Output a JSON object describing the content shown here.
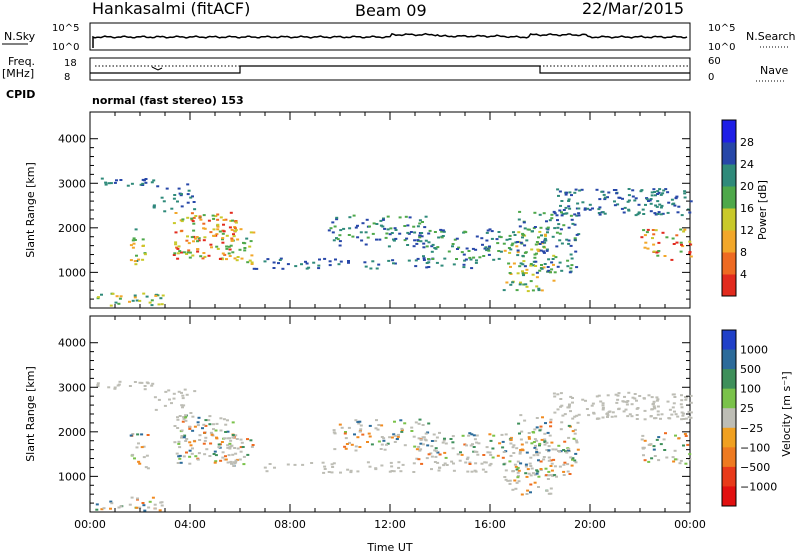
{
  "header": {
    "station": "Hankasalmi (fitACF)",
    "beam": "Beam 09",
    "date": "22/Mar/2015"
  },
  "panels": {
    "nsky_label": "N.Sky",
    "nsky_top_tick": "10^5",
    "nsky_bottom_tick": "10^0",
    "nsearch_label": "N.Search",
    "freq_label_1": "Freq.",
    "freq_label_2": "[MHz]",
    "freq_top_tick": "18",
    "freq_bottom_tick": "8",
    "nave_label": "Nave",
    "nave_top_tick": "60",
    "nave_bottom_tick": "0",
    "cpid_label": "CPID",
    "cpid_text": "normal (fast stereo) 153"
  },
  "chart_data": [
    {
      "type": "heatmap",
      "ylabel": "Slant Range [km]",
      "xlabel": "",
      "x_ticks": [
        "00:00",
        "04:00",
        "08:00",
        "12:00",
        "16:00",
        "20:00",
        "00:00"
      ],
      "y_ticks": [
        1000,
        2000,
        3000,
        4000
      ],
      "ylim": [
        200,
        4600
      ],
      "xlim_hours": [
        0,
        24
      ],
      "colorbar_label": "Power [dB]",
      "colorbar_ticks": [
        "4",
        "8",
        "12",
        "16",
        "20",
        "24",
        "28"
      ],
      "colorbar_colors": [
        "#1f1fe6",
        "#2747a8",
        "#2f8a7a",
        "#4ea84a",
        "#c9c92a",
        "#f2a72a",
        "#ee6a22",
        "#e22b1e"
      ]
    },
    {
      "type": "heatmap",
      "ylabel": "Slant Range [km]",
      "xlabel": "Time UT",
      "x_ticks": [
        "00:00",
        "04:00",
        "08:00",
        "12:00",
        "16:00",
        "20:00",
        "00:00"
      ],
      "y_ticks": [
        1000,
        2000,
        3000,
        4000
      ],
      "ylim": [
        200,
        4600
      ],
      "xlim_hours": [
        0,
        24
      ],
      "colorbar_label": "Velocity [m s⁻¹]",
      "colorbar_ticks": [
        "1000",
        "500",
        "100",
        "25",
        "−25",
        "−100",
        "−500",
        "−1000"
      ],
      "colorbar_colors": [
        "#2040c8",
        "#2c6b9a",
        "#3e8f5a",
        "#7ac24a",
        "#bdbdb5",
        "#f0a020",
        "#ee7a20",
        "#e83a1a",
        "#e21010"
      ]
    }
  ],
  "palettes": {
    "power": [
      "#2747a8",
      "#2f8a7a",
      "#4ea84a",
      "#c9c92a",
      "#f2a72a",
      "#ee6a22",
      "#e22b1e"
    ],
    "velocity_ground": "#bdbdb5",
    "velocity": [
      "#f08a20",
      "#ee6a20",
      "#7ac24a",
      "#3e8f5a",
      "#2c6b9a"
    ]
  }
}
